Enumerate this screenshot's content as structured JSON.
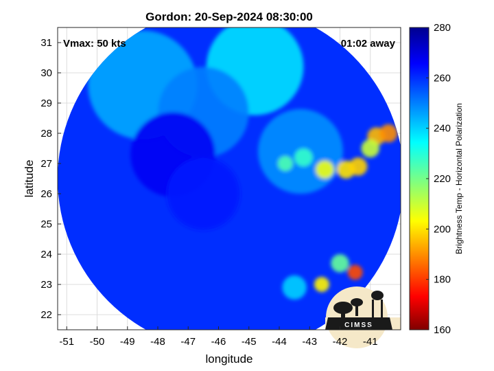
{
  "chart_data": {
    "type": "heatmap",
    "title": "Gordon: 20-Sep-2024 08:30:00",
    "xlabel": "longitude",
    "ylabel": "latitude",
    "xlim": [
      -51.3,
      -40.0
    ],
    "ylim": [
      21.5,
      31.5
    ],
    "xticks": [
      -51,
      -50,
      -49,
      -48,
      -47,
      -46,
      -45,
      -44,
      -43,
      -42,
      -41
    ],
    "yticks": [
      22,
      23,
      24,
      25,
      26,
      27,
      28,
      29,
      30,
      31
    ],
    "grid": true,
    "annotations": {
      "top_left": "Vmax: 50 kts",
      "top_right": "01:02 away"
    },
    "swath": {
      "type": "circle",
      "center_lon": -45.6,
      "center_lat": 26.5,
      "radius_deg": 5.7
    },
    "colorbar": {
      "label": "Brightness Temp - Horizontal Polarization",
      "range": [
        160,
        280
      ],
      "ticks": [
        160,
        180,
        200,
        220,
        240,
        260,
        280
      ],
      "colormap": "jet-reversed"
    },
    "background_value": 260,
    "features": [
      {
        "lon": -44.8,
        "lat": 30.2,
        "value": 238,
        "radius_deg": 1.6
      },
      {
        "lon": -48.5,
        "lat": 29.6,
        "value": 245,
        "radius_deg": 1.8
      },
      {
        "lon": -46.5,
        "lat": 28.7,
        "value": 250,
        "radius_deg": 1.5
      },
      {
        "lon": -43.3,
        "lat": 27.4,
        "value": 248,
        "radius_deg": 1.4
      },
      {
        "lon": -47.5,
        "lat": 27.3,
        "value": 267,
        "radius_deg": 1.4
      },
      {
        "lon": -46.5,
        "lat": 26.0,
        "value": 263,
        "radius_deg": 1.2
      },
      {
        "lon": -43.8,
        "lat": 27.0,
        "value": 225,
        "radius_deg": 0.25
      },
      {
        "lon": -43.2,
        "lat": 27.2,
        "value": 228,
        "radius_deg": 0.3
      },
      {
        "lon": -42.5,
        "lat": 26.8,
        "value": 205,
        "radius_deg": 0.3
      },
      {
        "lon": -41.8,
        "lat": 26.8,
        "value": 200,
        "radius_deg": 0.3
      },
      {
        "lon": -41.4,
        "lat": 26.9,
        "value": 198,
        "radius_deg": 0.3
      },
      {
        "lon": -40.8,
        "lat": 27.9,
        "value": 195,
        "radius_deg": 0.3
      },
      {
        "lon": -40.4,
        "lat": 28.0,
        "value": 190,
        "radius_deg": 0.3
      },
      {
        "lon": -41.0,
        "lat": 27.5,
        "value": 210,
        "radius_deg": 0.3
      },
      {
        "lon": -41.5,
        "lat": 23.4,
        "value": 182,
        "radius_deg": 0.25
      },
      {
        "lon": -42.6,
        "lat": 23.0,
        "value": 202,
        "radius_deg": 0.25
      },
      {
        "lon": -42.0,
        "lat": 23.7,
        "value": 222,
        "radius_deg": 0.3
      },
      {
        "lon": -43.5,
        "lat": 22.9,
        "value": 240,
        "radius_deg": 0.4
      }
    ]
  },
  "logo": {
    "text": "CIMSS"
  }
}
